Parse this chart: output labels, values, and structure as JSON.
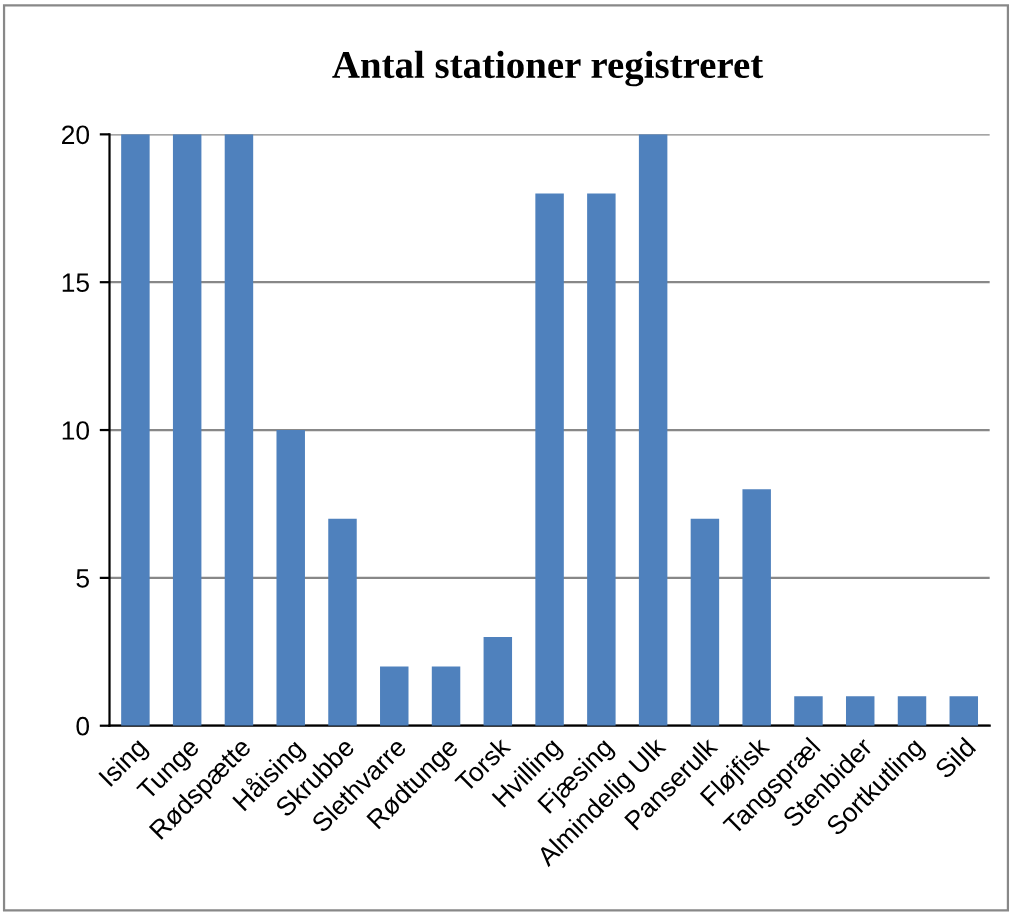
{
  "chart_data": {
    "type": "bar",
    "title": "Antal stationer registreret",
    "categories": [
      "Ising",
      "Tunge",
      "Rødspætte",
      "Håising",
      "Skrubbe",
      "Slethvarre",
      "Rødtunge",
      "Torsk",
      "Hvilling",
      "Fjæsing",
      "Almindelig Ulk",
      "Panserulk",
      "Fløjfisk",
      "Tangspræl",
      "Stenbider",
      "Sortkutling",
      "Sild"
    ],
    "values": [
      20,
      20,
      20,
      10,
      7,
      2,
      2,
      3,
      18,
      18,
      20,
      7,
      8,
      1,
      1,
      1,
      1
    ],
    "color": "#4f81bd",
    "ylim": [
      0,
      20
    ],
    "yticks": [
      0,
      5,
      10,
      15,
      20
    ],
    "grid": "y",
    "legend": false
  }
}
